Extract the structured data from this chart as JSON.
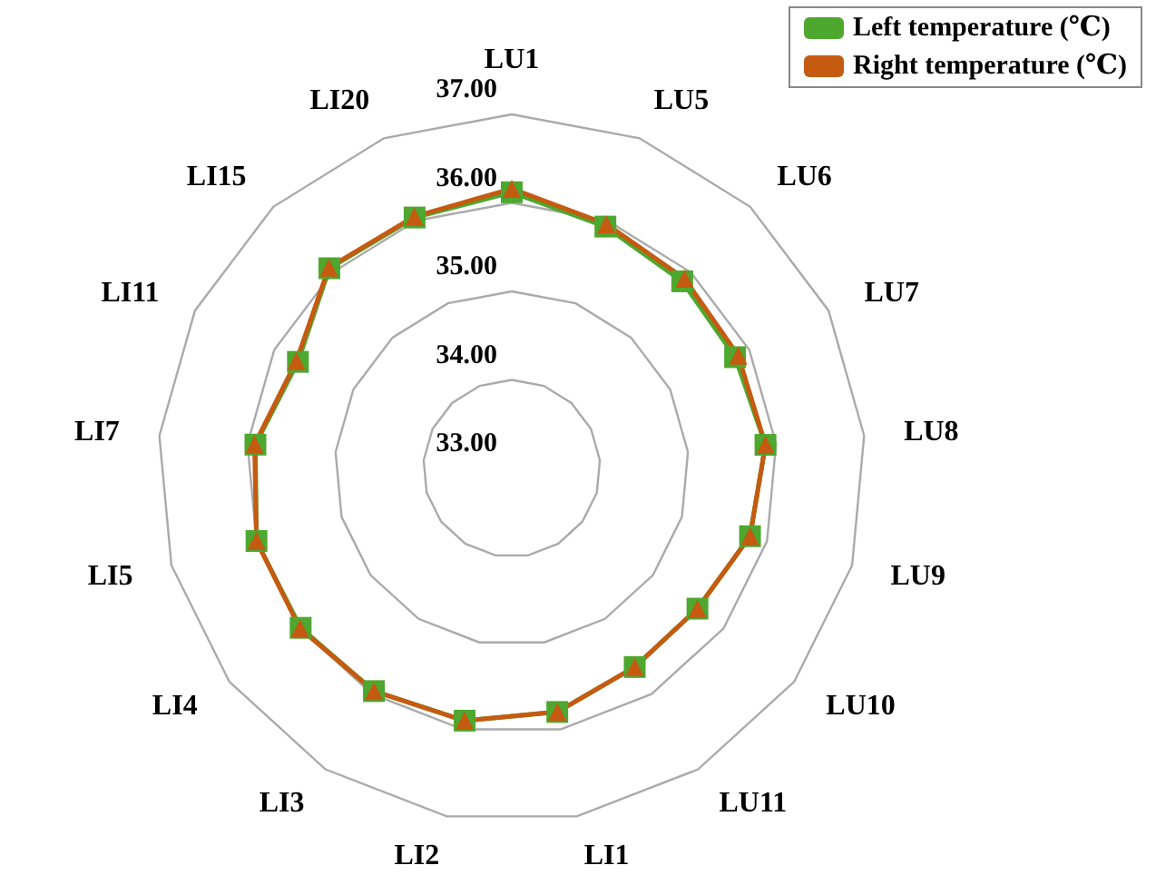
{
  "chart_data": {
    "type": "radar",
    "categories": [
      "LU1",
      "LU5",
      "LU6",
      "LU7",
      "LU8",
      "LU9",
      "LU10",
      "LU11",
      "LI1",
      "LI2",
      "LI3",
      "LI4",
      "LI5",
      "LI7",
      "LI11",
      "LI15",
      "LI20"
    ],
    "series": [
      {
        "name": "Left temperature (℃)",
        "color": "#4ea72e",
        "marker": "square",
        "values": [
          36.12,
          35.93,
          35.86,
          35.82,
          35.88,
          35.8,
          35.63,
          35.64,
          35.8,
          35.9,
          35.96,
          35.99,
          36.0,
          35.91,
          35.7,
          36.06,
          36.04
        ]
      },
      {
        "name": "Right temperature (℃)",
        "color": "#c55a11",
        "marker": "triangle",
        "values": [
          36.16,
          35.96,
          35.9,
          35.86,
          35.88,
          35.8,
          35.63,
          35.64,
          35.8,
          35.9,
          35.96,
          36.0,
          36.0,
          35.92,
          35.72,
          36.07,
          36.05
        ]
      }
    ],
    "ylim": [
      33,
      37
    ],
    "yticks": [
      {
        "value": 33,
        "label": "33.00"
      },
      {
        "value": 34,
        "label": "34.00"
      },
      {
        "value": 35,
        "label": "35.00"
      },
      {
        "value": 36,
        "label": "36.00"
      },
      {
        "value": 37,
        "label": "37.00"
      }
    ],
    "legend": "top right"
  }
}
